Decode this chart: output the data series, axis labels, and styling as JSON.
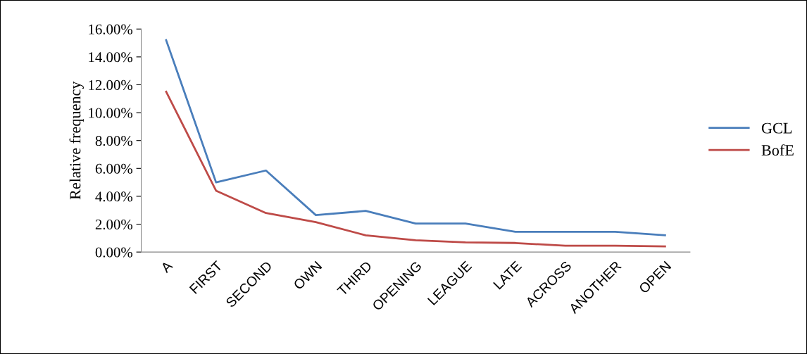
{
  "chart_data": {
    "type": "line",
    "ylabel": "Relative frequency",
    "categories": [
      "A",
      "FIRST",
      "SECOND",
      "OWN",
      "THIRD",
      "OPENING",
      "LEAGUE",
      "LATE",
      "ACROSS",
      "ANOTHER",
      "OPEN"
    ],
    "series": [
      {
        "name": "GCL",
        "color": "#4a7ebb",
        "values": [
          15.2,
          5.0,
          5.85,
          2.65,
          2.95,
          2.05,
          2.05,
          1.45,
          1.45,
          1.45,
          1.2
        ]
      },
      {
        "name": "BofE",
        "color": "#be4b48",
        "values": [
          11.5,
          4.4,
          2.8,
          2.15,
          1.2,
          0.85,
          0.7,
          0.65,
          0.45,
          0.45,
          0.4
        ]
      }
    ],
    "ylim": [
      0,
      16
    ],
    "yticks": [
      {
        "value": 0,
        "label": "0.00%"
      },
      {
        "value": 2,
        "label": "2.00%"
      },
      {
        "value": 4,
        "label": "4.00%"
      },
      {
        "value": 6,
        "label": "6.00%"
      },
      {
        "value": 8,
        "label": "8.00%"
      },
      {
        "value": 10,
        "label": "10.00%"
      },
      {
        "value": 12,
        "label": "12.00%"
      },
      {
        "value": 14,
        "label": "14.00%"
      },
      {
        "value": 16,
        "label": "16.00%"
      }
    ],
    "grid": false,
    "legend": "right",
    "marker": "none",
    "line_style": "solid"
  }
}
